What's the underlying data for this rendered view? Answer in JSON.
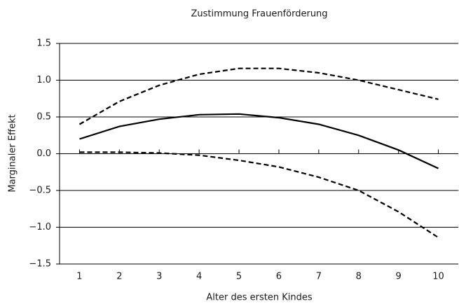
{
  "chart_data": {
    "type": "line",
    "title": "Zustimmung Frauenförderung",
    "x_label": "Alter des ersten Kindes",
    "y_label": "Marginaler Effekt",
    "x": [
      1,
      2,
      3,
      4,
      5,
      6,
      7,
      8,
      9,
      10
    ],
    "series": [
      {
        "color": "#000000",
        "dash": false,
        "values": [
          0.2,
          0.37,
          0.47,
          0.53,
          0.54,
          0.49,
          0.4,
          0.25,
          0.05,
          -0.2
        ]
      },
      {
        "color": "#000000",
        "dash": true,
        "values": [
          0.4,
          0.71,
          0.93,
          1.08,
          1.16,
          1.16,
          1.1,
          1.0,
          0.87,
          0.74
        ]
      },
      {
        "color": "#000000",
        "dash": true,
        "values": [
          0.02,
          0.02,
          0.01,
          -0.02,
          -0.09,
          -0.18,
          -0.32,
          -0.5,
          -0.79,
          -1.14
        ]
      }
    ],
    "xlim": [
      0.5,
      10.5
    ],
    "xticks": [
      1,
      2,
      3,
      4,
      5,
      6,
      7,
      8,
      9,
      10
    ],
    "ylim": [
      -1.5,
      1.5
    ],
    "yticks": [
      {
        "value": -1.5,
        "label": "−1.5"
      },
      {
        "value": -1,
        "label": "−1.0"
      },
      {
        "value": -0.5,
        "label": "−0.5"
      },
      {
        "value": 0,
        "label": "0.0"
      },
      0.5,
      {
        "value": 1,
        "label": "1.0"
      },
      1.5
    ],
    "grid": true
  }
}
